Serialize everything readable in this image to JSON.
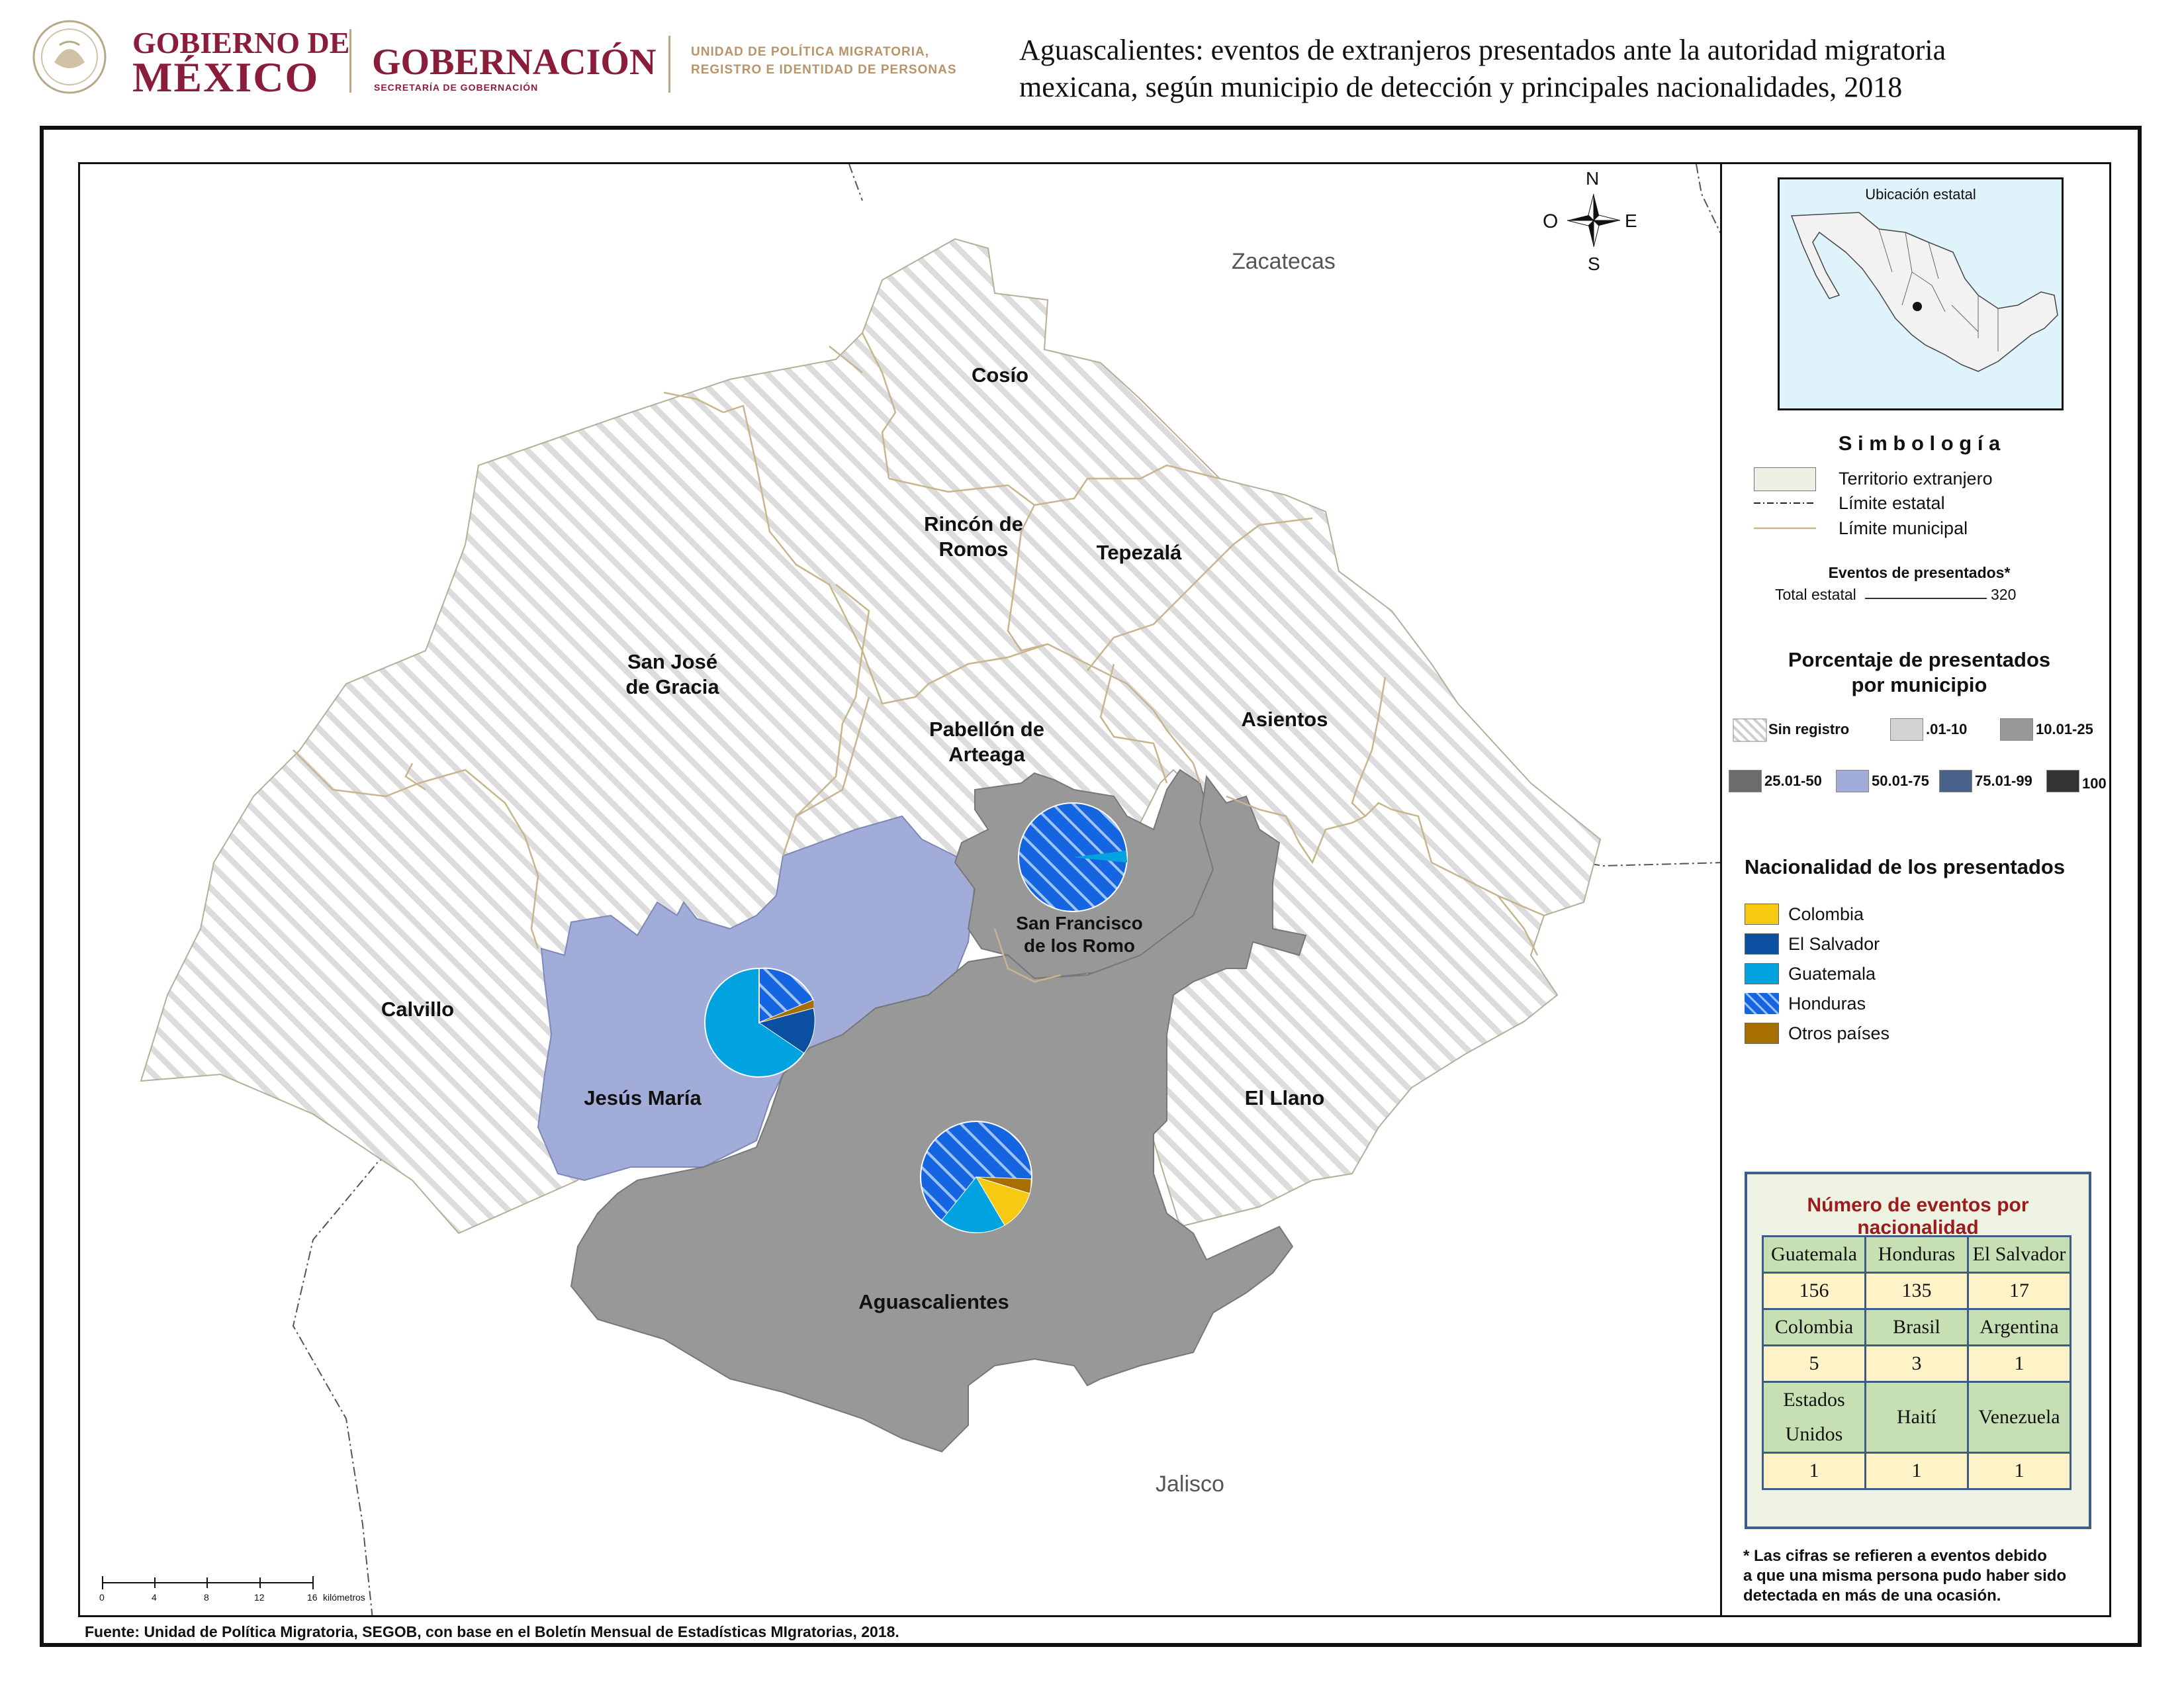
{
  "header": {
    "gov_line1": "GOBIERNO DE",
    "gov_line2": "MÉXICO",
    "ministry": "GOBERNACIÓN",
    "ministry_sub": "SECRETARÍA DE GOBERNACIÓN",
    "unit_line1": "UNIDAD DE POLÍTICA MIGRATORIA,",
    "unit_line2": "REGISTRO E IDENTIDAD DE PERSONAS",
    "title_line1": "Aguascalientes: eventos de extranjeros presentados ante la autoridad migratoria",
    "title_line2": "mexicana, según municipio de detección y principales nacionalidades, 2018"
  },
  "map": {
    "regions": {
      "north": "Zacatecas",
      "south": "Jalisco"
    },
    "compass": {
      "n": "N",
      "s": "S",
      "e": "E",
      "w": "O"
    },
    "municipalities": {
      "cosio": "Cosío",
      "rincon_l1": "Rincón de",
      "rincon_l2": "Romos",
      "tepezala": "Tepezalá",
      "sanjose_l1": "San José",
      "sanjose_l2": "de Gracia",
      "pabellon_l1": "Pabellón de",
      "pabellon_l2": "Arteaga",
      "asientos": "Asientos",
      "sanfco_l1": "San Francisco",
      "sanfco_l2": "de los Romo",
      "calvillo": "Calvillo",
      "jesus_maria": "Jesús María",
      "el_llano": "El Llano",
      "aguascalientes": "Aguascalientes"
    },
    "scale": {
      "ticks": [
        "0",
        "4",
        "8",
        "12",
        "16"
      ],
      "unit": "kilómetros"
    }
  },
  "colors": {
    "colombia": "#f6c913",
    "el_salvador": "#0a4fa0",
    "guatemala": "#00a3e0",
    "honduras": "#1565e0",
    "otros": "#a66f00",
    "pct_50_75": "#a2acd8",
    "pct_10_25": "#989898"
  },
  "legend": {
    "inset_title": "Ubicación estatal",
    "simbologia": "S i m b o l o g í a",
    "territorio": "Territorio extranjero",
    "limite_estatal": "Límite estatal",
    "limite_municipal": "Límite municipal",
    "eventos_title": "Eventos de presentados*",
    "total_label": "Total estatal",
    "total_value": "320",
    "pct_title_l1": "Porcentaje de presentados",
    "pct_title_l2": "por municipio",
    "pct_classes": [
      "Sin registro",
      ".01-10",
      "10.01-25",
      "25.01-50",
      "50.01-75",
      "75.01-99",
      "100"
    ],
    "nat_title": "Nacionalidad de los presentados",
    "nationalities": [
      "Colombia",
      "El Salvador",
      "Guatemala",
      "Honduras",
      "Otros países"
    ]
  },
  "counts": {
    "title": "Número de eventos por nacionalidad",
    "row1_headers": [
      "Guatemala",
      "Honduras",
      "El Salvador"
    ],
    "row1_values": [
      "156",
      "135",
      "17"
    ],
    "row2_headers": [
      "Colombia",
      "Brasil",
      "Argentina"
    ],
    "row2_values": [
      "5",
      "3",
      "1"
    ],
    "row3_headers": [
      "Estados Unidos",
      "Haití",
      "Venezuela"
    ],
    "row3_values": [
      "1",
      "1",
      "1"
    ]
  },
  "footnote": {
    "l1": "* Las cifras se refieren a eventos debido",
    "l2": "a que una misma persona pudo haber sido",
    "l3": "detectada en más de una ocasión."
  },
  "source": "Fuente: Unidad de Política Migratoria, SEGOB, con base en el Boletín Mensual de Estadísticas MIgratorias, 2018."
}
